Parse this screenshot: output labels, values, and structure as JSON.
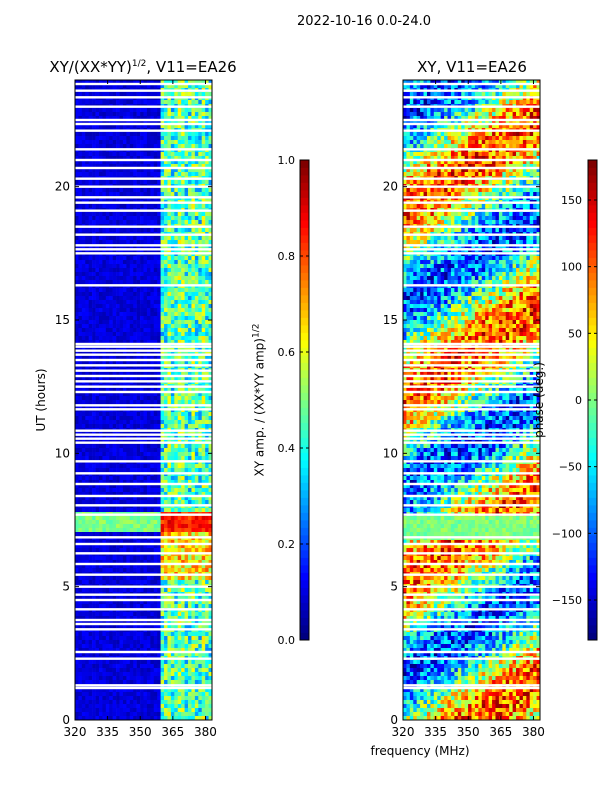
{
  "figure": {
    "suptitle": "2022-10-16 0.0-24.0"
  },
  "chart_data": [
    {
      "type": "heatmap",
      "title_main": "XY/(XX*YY)",
      "title_sup": "1/2",
      "title_tail": ", V11=EA26",
      "xlabel": "",
      "ylabel": "UT (hours)",
      "xlim": [
        320,
        383
      ],
      "ylim": [
        0,
        24
      ],
      "xticks": [
        {
          "v": 320,
          "label": "320"
        },
        {
          "v": 335,
          "label": "335"
        },
        {
          "v": 350,
          "label": "350"
        },
        {
          "v": 365,
          "label": "365"
        },
        {
          "v": 380,
          "label": "380"
        }
      ],
      "yticks": [
        {
          "v": 0,
          "label": "0"
        },
        {
          "v": 5,
          "label": "5"
        },
        {
          "v": 10,
          "label": "10"
        },
        {
          "v": 15,
          "label": "15"
        },
        {
          "v": 20,
          "label": "20"
        }
      ],
      "colorbar": {
        "label_main": "XY amp. / (XX*YY amp)",
        "label_sup": "1/2",
        "range": [
          0.0,
          1.0
        ],
        "ticks": [
          {
            "v": 0.0,
            "label": "0.0"
          },
          {
            "v": 0.2,
            "label": "0.2"
          },
          {
            "v": 0.4,
            "label": "0.4"
          },
          {
            "v": 0.6,
            "label": "0.6"
          },
          {
            "v": 0.8,
            "label": "0.8"
          },
          {
            "v": 1.0,
            "label": "1.0"
          }
        ]
      }
    },
    {
      "type": "heatmap",
      "title_main": "XY, V11=EA26",
      "title_sup": "",
      "title_tail": "",
      "xlabel": "frequency (MHz)",
      "ylabel": "",
      "xlim": [
        320,
        383
      ],
      "ylim": [
        0,
        24
      ],
      "xticks": [
        {
          "v": 320,
          "label": "320"
        },
        {
          "v": 335,
          "label": "335"
        },
        {
          "v": 350,
          "label": "350"
        },
        {
          "v": 365,
          "label": "365"
        },
        {
          "v": 380,
          "label": "380"
        }
      ],
      "yticks": [
        {
          "v": 0,
          "label": "0"
        },
        {
          "v": 5,
          "label": "5"
        },
        {
          "v": 10,
          "label": "10"
        },
        {
          "v": 15,
          "label": "15"
        },
        {
          "v": 20,
          "label": "20"
        }
      ],
      "colorbar": {
        "label_main": "phase (deg.)",
        "label_sup": "",
        "range": [
          -180,
          180
        ],
        "ticks": [
          {
            "v": -150,
            "label": "−150"
          },
          {
            "v": -100,
            "label": "−100"
          },
          {
            "v": -50,
            "label": "−50"
          },
          {
            "v": 0,
            "label": "0"
          },
          {
            "v": 50,
            "label": "50"
          },
          {
            "v": 100,
            "label": "100"
          },
          {
            "v": 150,
            "label": "150"
          }
        ]
      }
    }
  ],
  "flagged_hours": [
    1.2,
    1.3,
    2.3,
    2.55,
    3.4,
    3.6,
    3.75,
    4.15,
    4.5,
    4.7,
    5.0,
    5.45,
    5.85,
    6.25,
    6.6,
    6.85,
    7.7,
    8.05,
    8.4,
    8.85,
    9.25,
    9.7,
    10.4,
    10.55,
    10.7,
    10.85,
    11.65,
    11.8,
    12.3,
    12.5,
    12.7,
    12.9,
    13.1,
    13.3,
    13.5,
    13.7,
    13.85,
    14.0,
    14.1,
    16.3,
    17.5,
    17.65,
    17.8,
    18.2,
    18.5,
    19.1,
    19.4,
    19.6,
    20.0,
    20.3,
    20.7,
    21.0,
    21.4,
    22.1,
    22.35,
    22.5,
    23.0,
    23.35,
    23.6,
    23.85
  ]
}
